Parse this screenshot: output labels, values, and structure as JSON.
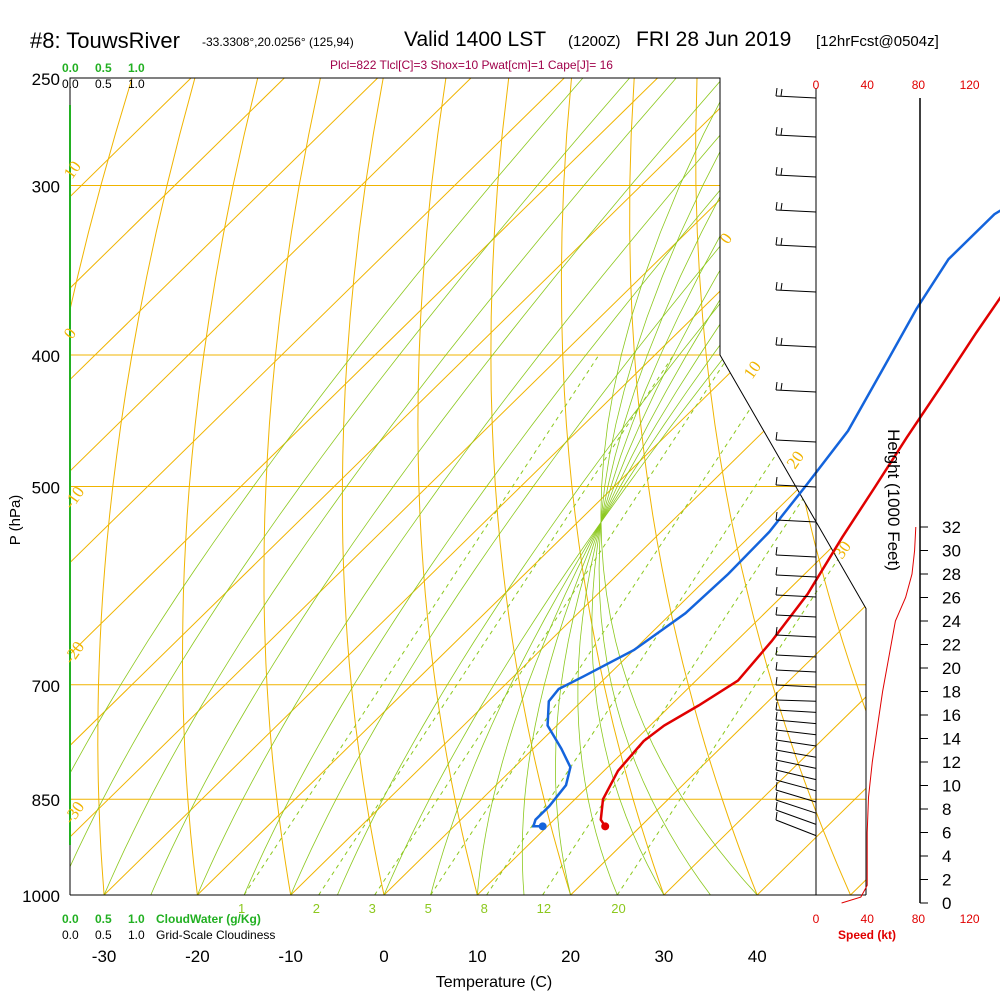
{
  "header": {
    "title": "#8: TouwsRiver",
    "coords": "-33.3308°,20.0256° (125,94)",
    "valid": "Valid 1400 LST",
    "z": "(1200Z)",
    "date": "FRI 28 Jun 2019",
    "fcst": "[12hrFcst@0504z]",
    "indices": "Plcl=822 Tlcl[C]=3 Shox=10 Pwat[cm]=1 Cape[J]= 16"
  },
  "labels": {
    "cloudwater": "CloudWater (g/Kg)",
    "cloudiness": "Grid-Scale Cloudiness",
    "speed": "Speed (kt)",
    "height": "Height (1000 Feet)",
    "pressure": "P (hPa)",
    "temperature": "Temperature (C)"
  },
  "colors": {
    "isotherm": "#f0b400",
    "dry_adiabat": "#8cc81e",
    "mixing_ratio": "#8cc81e",
    "temperature": "#e00000",
    "dewpoint": "#1464dc",
    "cloud": "#22b022",
    "speed": "#e00000",
    "barb": "#000000"
  },
  "chart_data": {
    "type": "line",
    "title": "#8: TouwsRiver Valid 1400 LST (1200Z) FRI 28 Jun 2019",
    "xlabel": "Temperature (C)",
    "ylabel": "P (hPa)",
    "x_ticks": [
      -30,
      -20,
      -10,
      0,
      10,
      20,
      30,
      40
    ],
    "p_ticks": [
      250,
      300,
      400,
      500,
      700,
      850,
      1000
    ],
    "isotherm_labels": [
      {
        "t": "10"
      },
      {
        "t": "0"
      },
      {
        "t": "-10"
      },
      {
        "t": "-20"
      },
      {
        "t": "-30"
      },
      {
        "t": "0"
      },
      {
        "t": "10"
      },
      {
        "t": "20"
      },
      {
        "t": "30"
      }
    ],
    "mixing_ratio_labels": [
      "1",
      "2",
      "3",
      "5",
      "8",
      "12",
      "20"
    ],
    "cloud_scale": [
      "0.0",
      "0.5",
      "1.0"
    ],
    "series": [
      {
        "name": "Temperature",
        "points": [
          [
            -5.5,
            260
          ],
          [
            -4,
            290
          ],
          [
            -2,
            320
          ],
          [
            0,
            350
          ],
          [
            2,
            385
          ],
          [
            4,
            420
          ],
          [
            6,
            460
          ],
          [
            8,
            500
          ],
          [
            10,
            545
          ],
          [
            12.5,
            600
          ],
          [
            13.8,
            650
          ],
          [
            14.5,
            695
          ],
          [
            13,
            725
          ],
          [
            11.5,
            750
          ],
          [
            11,
            770
          ],
          [
            11.5,
            810
          ],
          [
            13,
            850
          ],
          [
            15,
            880
          ],
          [
            16.2,
            890
          ]
        ]
      },
      {
        "name": "Dewpoint",
        "points": [
          [
            -10,
            260
          ],
          [
            -8,
            280
          ],
          [
            -7,
            300
          ],
          [
            -9,
            315
          ],
          [
            -9,
            340
          ],
          [
            -7,
            370
          ],
          [
            -4,
            410
          ],
          [
            -1,
            455
          ],
          [
            0.5,
            500
          ],
          [
            1.6,
            540
          ],
          [
            1.8,
            580
          ],
          [
            1.5,
            620
          ],
          [
            0,
            660
          ],
          [
            -2.5,
            690
          ],
          [
            -3.8,
            705
          ],
          [
            -3.5,
            720
          ],
          [
            -1,
            750
          ],
          [
            3,
            780
          ],
          [
            6,
            805
          ],
          [
            7.5,
            830
          ],
          [
            8,
            860
          ],
          [
            8,
            880
          ],
          [
            8.5,
            890
          ],
          [
            9.5,
            890
          ]
        ]
      }
    ],
    "wind_speed_axis": [
      "0",
      "40",
      "80",
      "120"
    ],
    "height_ticks": [
      "0",
      "2",
      "4",
      "6",
      "8",
      "10",
      "12",
      "14",
      "16",
      "18",
      "20",
      "22",
      "24",
      "26",
      "28",
      "30",
      "32"
    ],
    "speed_profile": [
      [
        20,
        0
      ],
      [
        35,
        0.5
      ],
      [
        40,
        1.5
      ],
      [
        40,
        4
      ],
      [
        40,
        6
      ],
      [
        41,
        9
      ],
      [
        44,
        12
      ],
      [
        48,
        15
      ],
      [
        52,
        18
      ],
      [
        57,
        21
      ],
      [
        62,
        24
      ],
      [
        70,
        26
      ],
      [
        75,
        28
      ],
      [
        77,
        30
      ],
      [
        78,
        32
      ]
    ]
  }
}
